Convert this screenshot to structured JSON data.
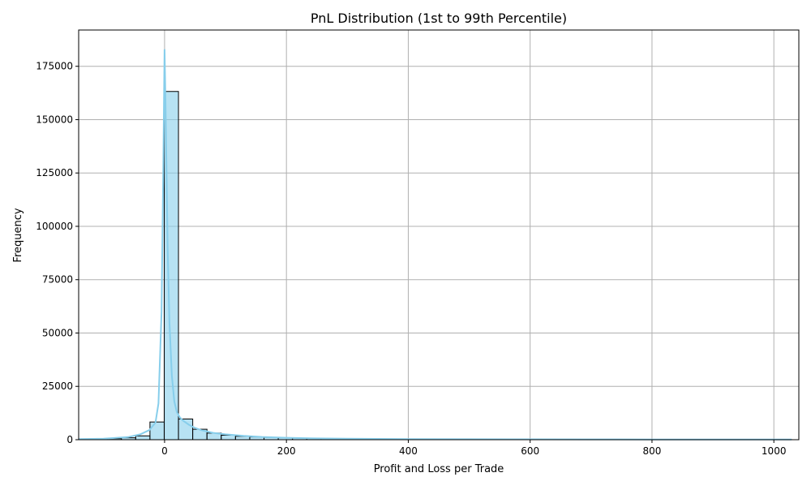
{
  "chart_data": {
    "type": "bar",
    "title": "PnL Distribution (1st to 99th Percentile)",
    "xlabel": "Profit and Loss per Trade",
    "ylabel": "Frequency",
    "xlim": [
      -141,
      1041
    ],
    "ylim": [
      0,
      192000
    ],
    "grid": true,
    "x_ticks": [
      0,
      200,
      400,
      600,
      800,
      1000
    ],
    "x_tick_labels": [
      "0",
      "200",
      "400",
      "600",
      "800",
      "1000"
    ],
    "y_ticks": [
      0,
      25000,
      50000,
      75000,
      100000,
      125000,
      150000,
      175000
    ],
    "y_tick_labels": [
      "0",
      "25000",
      "50000",
      "75000",
      "100000",
      "125000",
      "150000",
      "175000"
    ],
    "bin_edges": [
      -141.0,
      -117.6,
      -94.2,
      -70.8,
      -47.4,
      -24.0,
      -0.6,
      22.8,
      46.2,
      69.6,
      93.0,
      116.4,
      139.8,
      163.2,
      186.6,
      210.0,
      233.4,
      256.8,
      280.2,
      303.6,
      327.0,
      350.4,
      373.8,
      397.2,
      420.6,
      444.0,
      467.4,
      490.8,
      514.2,
      537.6,
      561.0,
      584.4,
      607.8,
      631.2,
      654.6,
      678.0,
      701.4,
      724.8,
      748.2,
      771.6,
      795.0,
      818.4,
      841.8,
      865.2,
      888.6,
      912.0,
      935.4,
      958.8,
      982.2,
      1005.6,
      1029.0
    ],
    "counts": [
      250,
      350,
      500,
      900,
      1800,
      8300,
      163200,
      9700,
      4900,
      3100,
      2100,
      1600,
      1300,
      1100,
      900,
      750,
      650,
      550,
      480,
      420,
      360,
      320,
      290,
      260,
      240,
      220,
      200,
      190,
      180,
      170,
      160,
      150,
      140,
      135,
      130,
      125,
      120,
      115,
      110,
      105,
      100,
      95,
      90,
      85,
      80,
      75,
      70,
      65,
      60,
      55
    ],
    "kde": {
      "x": [
        -141,
        -100,
        -60,
        -40,
        -25,
        -15,
        -10,
        -5,
        -2,
        0,
        2,
        5,
        8,
        12,
        16,
        20,
        25,
        30,
        40,
        50,
        60,
        80,
        100,
        130,
        160,
        200,
        250,
        300,
        400,
        500,
        600,
        700,
        800,
        900,
        1000,
        1029
      ],
      "y": [
        300,
        500,
        1200,
        2500,
        4500,
        8000,
        17000,
        60000,
        130000,
        183000,
        150000,
        90000,
        55000,
        30000,
        18000,
        13000,
        10500,
        9000,
        7000,
        5500,
        4500,
        3200,
        2500,
        1800,
        1300,
        900,
        600,
        450,
        300,
        220,
        180,
        150,
        120,
        100,
        80,
        70
      ]
    },
    "colors": {
      "bar_fill": "#87ceeb",
      "bar_stroke": "#000000",
      "kde_line": "#87ceeb",
      "grid": "#b0b0b0"
    }
  }
}
